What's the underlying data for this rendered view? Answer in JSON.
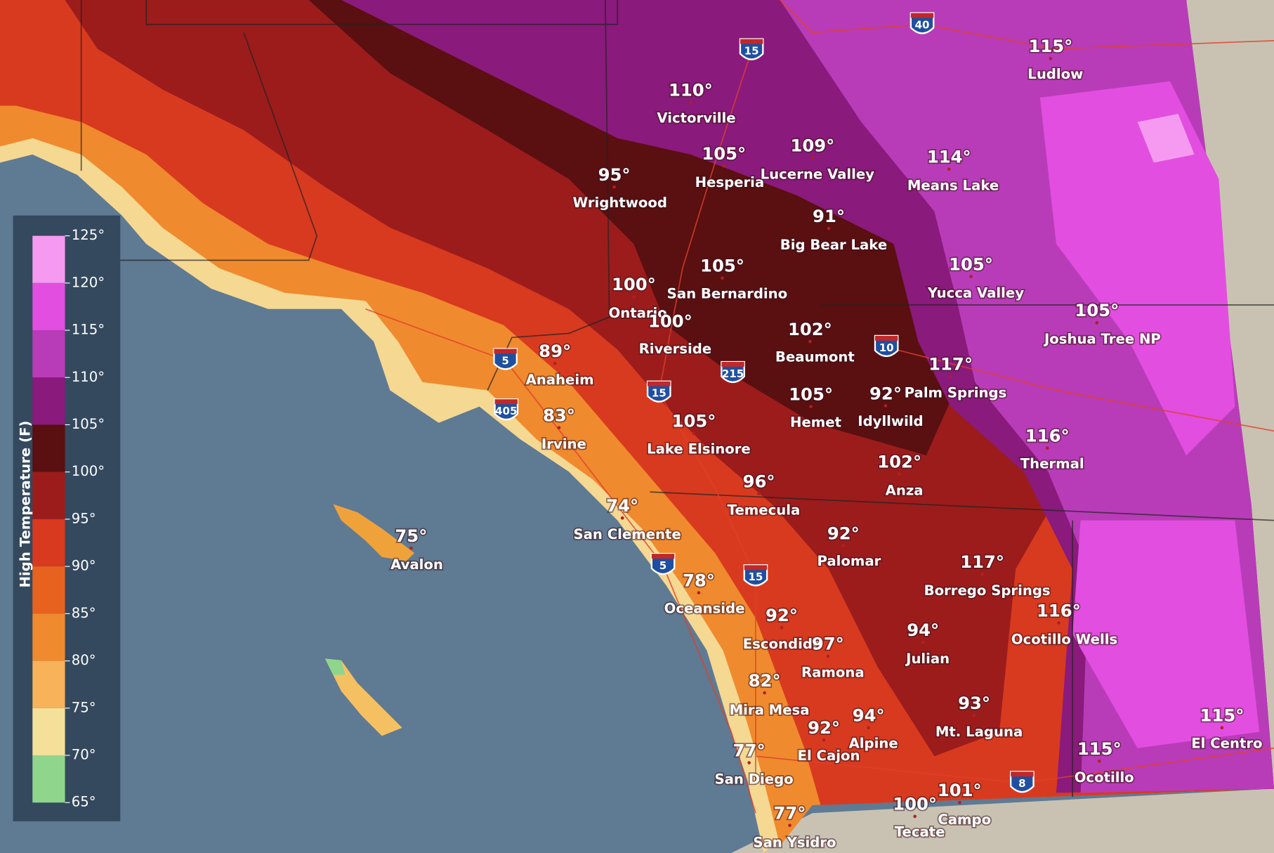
{
  "legend": {
    "title": "High Temperature (F)",
    "ticks": [
      "125°",
      "120°",
      "115°",
      "110°",
      "105°",
      "100°",
      "95°",
      "90°",
      "85°",
      "80°",
      "75°",
      "70°",
      "65°"
    ]
  },
  "places": [
    {
      "temp": "110°",
      "name": "Victorville"
    },
    {
      "temp": "115°",
      "name": "Ludlow"
    },
    {
      "temp": "105°",
      "name": "Hesperia"
    },
    {
      "temp": "109°",
      "name": "Lucerne Valley"
    },
    {
      "temp": "114°",
      "name": "Means Lake"
    },
    {
      "temp": "95°",
      "name": "Wrightwood"
    },
    {
      "temp": "91°",
      "name": "Big Bear Lake"
    },
    {
      "temp": "105°",
      "name": "San Bernardino"
    },
    {
      "temp": "105°",
      "name": "Yucca Valley"
    },
    {
      "temp": "100°",
      "name": "Ontario"
    },
    {
      "temp": "100°",
      "name": "Riverside"
    },
    {
      "temp": "102°",
      "name": "Beaumont"
    },
    {
      "temp": "105°",
      "name": "Joshua Tree NP"
    },
    {
      "temp": "89°",
      "name": "Anaheim"
    },
    {
      "temp": "117°",
      "name": "Palm Springs"
    },
    {
      "temp": "105°",
      "name": "Hemet"
    },
    {
      "temp": "92°",
      "name": "Idyllwild"
    },
    {
      "temp": "83°",
      "name": "Irvine"
    },
    {
      "temp": "105°",
      "name": "Lake Elsinore"
    },
    {
      "temp": "116°",
      "name": "Thermal"
    },
    {
      "temp": "102°",
      "name": "Anza"
    },
    {
      "temp": "96°",
      "name": "Temecula"
    },
    {
      "temp": "74°",
      "name": "San Clemente"
    },
    {
      "temp": "75°",
      "name": "Avalon"
    },
    {
      "temp": "92°",
      "name": "Palomar"
    },
    {
      "temp": "117°",
      "name": "Borrego Springs"
    },
    {
      "temp": "78°",
      "name": "Oceanside"
    },
    {
      "temp": "116°",
      "name": "Ocotillo Wells"
    },
    {
      "temp": "92°",
      "name": "Escondido"
    },
    {
      "temp": "97°",
      "name": "Ramona"
    },
    {
      "temp": "94°",
      "name": "Julian"
    },
    {
      "temp": "82°",
      "name": "Mira Mesa"
    },
    {
      "temp": "93°",
      "name": "Mt. Laguna"
    },
    {
      "temp": "94°",
      "name": "Alpine"
    },
    {
      "temp": "92°",
      "name": "El Cajon"
    },
    {
      "temp": "115°",
      "name": "El Centro"
    },
    {
      "temp": "115°",
      "name": "Ocotillo"
    },
    {
      "temp": "77°",
      "name": "San Diego"
    },
    {
      "temp": "101°",
      "name": "Campo"
    },
    {
      "temp": "100°",
      "name": "Tecate"
    },
    {
      "temp": "77°",
      "name": "San Ysidro"
    }
  ],
  "shields": [
    "15",
    "40",
    "5",
    "405",
    "10",
    "215",
    "15",
    "5",
    "15",
    "8"
  ]
}
